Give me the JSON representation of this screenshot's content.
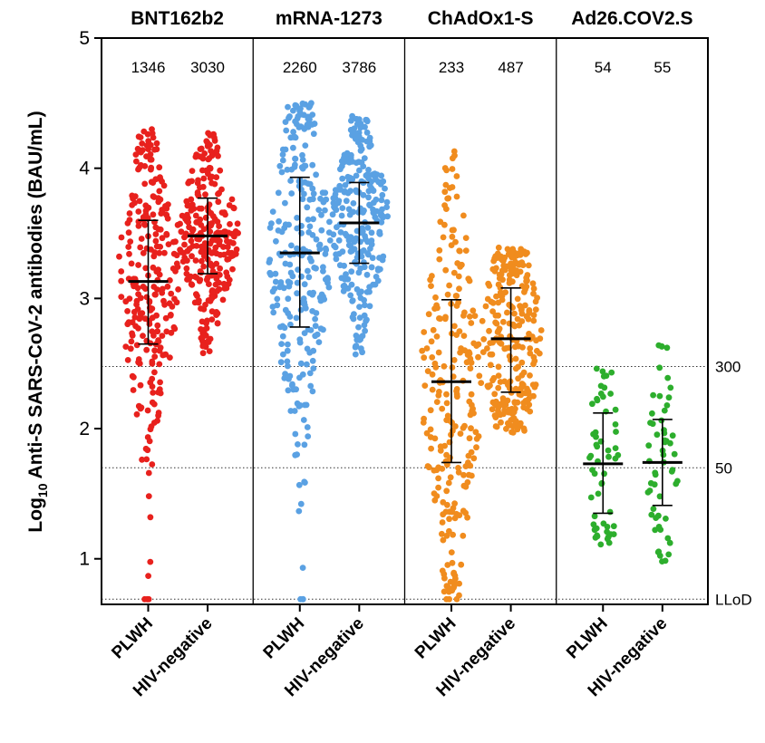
{
  "chart_data": {
    "type": "scatter",
    "ylabel_prefix": "Log",
    "ylabel_subscript": "10",
    "ylabel_rest": " Anti-S SARS-CoV-2 antibodies (BAU/mL)",
    "ylim": [
      0.65,
      5.0
    ],
    "yticks": [
      "1",
      "2",
      "3",
      "4",
      "5"
    ],
    "reference_lines": [
      {
        "y": 2.477,
        "label": "300"
      },
      {
        "y": 1.699,
        "label": "50"
      },
      {
        "y": 0.69,
        "label": "LLoD"
      }
    ],
    "colors": {
      "BNT162b2": "#e8211d",
      "mRNA-1273": "#5aa1e3",
      "ChAdOx1-S": "#f08c1e",
      "Ad26.COV2.S": "#2dae2d"
    },
    "panels": [
      {
        "vaccine": "BNT162b2",
        "groups": [
          {
            "label": "PLWH",
            "n": "1346",
            "median": 3.13,
            "q_low": 2.65,
            "q_high": 3.6,
            "min": 0.69,
            "max": 4.3
          },
          {
            "label": "HIV-negative",
            "n": "3030",
            "median": 3.48,
            "q_low": 3.19,
            "q_high": 3.77,
            "min": 2.58,
            "max": 4.27
          }
        ]
      },
      {
        "vaccine": "mRNA-1273",
        "groups": [
          {
            "label": "PLWH",
            "n": "2260",
            "median": 3.35,
            "q_low": 2.78,
            "q_high": 3.93,
            "min": 0.69,
            "max": 4.5
          },
          {
            "label": "HIV-negative",
            "n": "3786",
            "median": 3.58,
            "q_low": 3.27,
            "q_high": 3.89,
            "min": 2.57,
            "max": 4.4
          }
        ]
      },
      {
        "vaccine": "ChAdOx1-S",
        "groups": [
          {
            "label": "PLWH",
            "n": "233",
            "median": 2.36,
            "q_low": 1.74,
            "q_high": 2.99,
            "min": 0.69,
            "max": 4.13
          },
          {
            "label": "HIV-negative",
            "n": "487",
            "median": 2.69,
            "q_low": 2.28,
            "q_high": 3.08,
            "min": 1.97,
            "max": 3.39
          }
        ]
      },
      {
        "vaccine": "Ad26.COV2.S",
        "groups": [
          {
            "label": "PLWH",
            "n": "54",
            "median": 1.73,
            "q_low": 1.35,
            "q_high": 2.12,
            "min": 1.11,
            "max": 2.46
          },
          {
            "label": "HIV-negative",
            "n": "55",
            "median": 1.74,
            "q_low": 1.41,
            "q_high": 2.07,
            "min": 0.98,
            "max": 2.64
          }
        ]
      }
    ]
  }
}
